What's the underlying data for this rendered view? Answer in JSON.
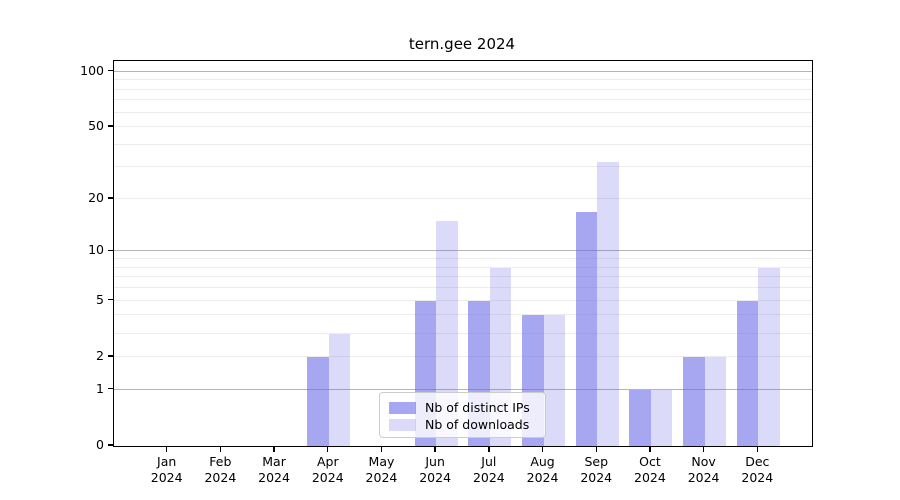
{
  "title": "tern.gee 2024",
  "chart_data": {
    "type": "bar",
    "title": "tern.gee 2024",
    "categories": [
      "Jan 2024",
      "Feb 2024",
      "Mar 2024",
      "Apr 2024",
      "May 2024",
      "Jun 2024",
      "Jul 2024",
      "Aug 2024",
      "Sep 2024",
      "Oct 2024",
      "Nov 2024",
      "Dec 2024"
    ],
    "month_labels": [
      "Jan",
      "Feb",
      "Mar",
      "Apr",
      "May",
      "Jun",
      "Jul",
      "Aug",
      "Sep",
      "Oct",
      "Nov",
      "Dec"
    ],
    "year_label": "2024",
    "series": [
      {
        "name": "Nb of distinct IPs",
        "base_color": "#6666e6",
        "alpha": 0.575,
        "solid_hex": "#a7a7f0",
        "values": [
          0,
          0,
          0,
          2,
          0,
          5,
          5,
          4,
          17,
          1,
          2,
          5
        ]
      },
      {
        "name": "Nb of downloads",
        "base_color": "#6666e6",
        "alpha": 0.235,
        "solid_hex": "#dbdbf8",
        "values": [
          0,
          0,
          0,
          3,
          0,
          15,
          8,
          4,
          32,
          1,
          2,
          8
        ]
      }
    ],
    "yscale": "log1p",
    "ylim": [
      0,
      115
    ],
    "yticks": [
      0,
      1,
      2,
      5,
      10,
      20,
      50,
      100
    ],
    "major_gridlines": [
      1,
      10,
      100
    ],
    "minor_gridlines": [
      2,
      3,
      4,
      5,
      6,
      7,
      8,
      9,
      20,
      30,
      40,
      50,
      60,
      70,
      80,
      90
    ],
    "grid_major_color": "#b4b4b4",
    "grid_minor_color": "#ececec",
    "legend_position": "lower center inside",
    "background_color": "#ffffff"
  }
}
